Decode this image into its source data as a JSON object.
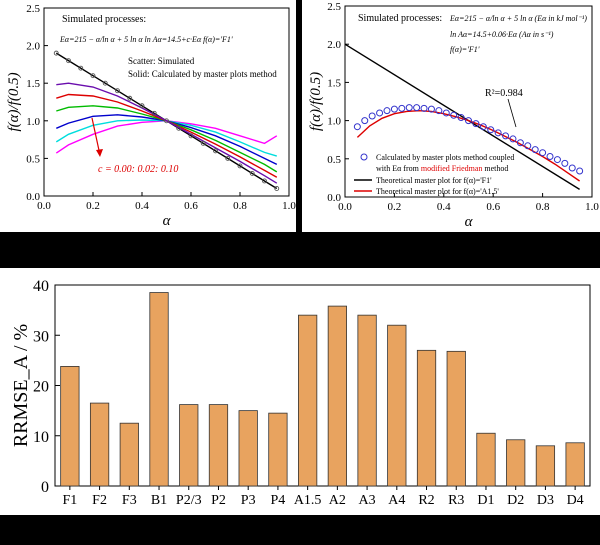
{
  "chart_data": [
    {
      "type": "line",
      "panel": "a",
      "xlabel": "α",
      "ylabel": "f(α)/f(0.5)",
      "xlim": [
        0.0,
        1.0
      ],
      "ylim": [
        0.0,
        2.5
      ],
      "xticks": [
        "0.0",
        "0.2",
        "0.4",
        "0.6",
        "0.8",
        "1.0"
      ],
      "yticks": [
        "0.0",
        "0.5",
        "1.0",
        "1.5",
        "2.0",
        "2.5"
      ],
      "annotations": {
        "title": "Simulated processes:",
        "eq1": "Eα=215 − α/ln α + 5 ln α   ln Aα=14.5+c·Eα   f(α)='F1'",
        "scatter_note": "Scatter: Simulated",
        "solid_note": "Solid: Calculated by master plots method",
        "c_label": "c = 0.00: 0.02: 0.10"
      },
      "series": [
        {
          "color": "#000000",
          "x": [
            0.05,
            0.1,
            0.2,
            0.3,
            0.4,
            0.5,
            0.6,
            0.7,
            0.8,
            0.9,
            0.95
          ],
          "y": [
            1.9,
            1.8,
            1.6,
            1.4,
            1.2,
            1.0,
            0.8,
            0.6,
            0.4,
            0.2,
            0.1
          ]
        },
        {
          "color": "#ff00ff",
          "x": [
            0.05,
            0.1,
            0.2,
            0.3,
            0.4,
            0.5,
            0.6,
            0.7,
            0.8,
            0.9,
            0.95
          ],
          "y": [
            0.57,
            0.68,
            0.82,
            0.93,
            0.98,
            1.0,
            0.96,
            0.9,
            0.8,
            0.7,
            0.8
          ]
        },
        {
          "color": "#00dddd",
          "x": [
            0.05,
            0.1,
            0.2,
            0.3,
            0.4,
            0.5,
            0.6,
            0.7,
            0.8,
            0.9,
            0.95
          ],
          "y": [
            0.72,
            0.82,
            0.94,
            1.0,
            1.01,
            1.0,
            0.94,
            0.85,
            0.72,
            0.58,
            0.53
          ]
        },
        {
          "color": "#0000cc",
          "x": [
            0.05,
            0.1,
            0.2,
            0.3,
            0.4,
            0.5,
            0.6,
            0.7,
            0.8,
            0.9,
            0.95
          ],
          "y": [
            0.9,
            0.97,
            1.06,
            1.08,
            1.05,
            1.0,
            0.91,
            0.8,
            0.66,
            0.5,
            0.42
          ]
        },
        {
          "color": "#00bb00",
          "x": [
            0.05,
            0.1,
            0.2,
            0.3,
            0.4,
            0.5,
            0.6,
            0.7,
            0.8,
            0.9,
            0.95
          ],
          "y": [
            1.13,
            1.18,
            1.2,
            1.17,
            1.09,
            1.0,
            0.88,
            0.74,
            0.58,
            0.42,
            0.32
          ]
        },
        {
          "color": "#dd0000",
          "x": [
            0.05,
            0.1,
            0.2,
            0.3,
            0.4,
            0.5,
            0.6,
            0.7,
            0.8,
            0.9,
            0.95
          ],
          "y": [
            1.3,
            1.35,
            1.33,
            1.25,
            1.13,
            1.0,
            0.85,
            0.69,
            0.52,
            0.34,
            0.25
          ]
        },
        {
          "color": "#6a0dad",
          "x": [
            0.05,
            0.1,
            0.2,
            0.3,
            0.4,
            0.5,
            0.6,
            0.7,
            0.8,
            0.9,
            0.95
          ],
          "y": [
            1.48,
            1.5,
            1.45,
            1.33,
            1.17,
            1.0,
            0.82,
            0.64,
            0.46,
            0.27,
            0.17
          ]
        }
      ],
      "scatter_series": {
        "color": "#555555",
        "x": [
          0.05,
          0.1,
          0.15,
          0.2,
          0.25,
          0.3,
          0.35,
          0.4,
          0.45,
          0.5,
          0.55,
          0.6,
          0.65,
          0.7,
          0.75,
          0.8,
          0.85,
          0.9,
          0.95
        ],
        "y": [
          1.9,
          1.8,
          1.7,
          1.6,
          1.5,
          1.4,
          1.3,
          1.2,
          1.1,
          1.0,
          0.9,
          0.8,
          0.7,
          0.6,
          0.5,
          0.4,
          0.3,
          0.2,
          0.1
        ]
      }
    },
    {
      "type": "line",
      "panel": "b",
      "xlabel": "α",
      "ylabel": "f(α)/f(0.5)",
      "xlim": [
        0.0,
        1.0
      ],
      "ylim": [
        0.0,
        2.5
      ],
      "xticks": [
        "0.0",
        "0.2",
        "0.4",
        "0.6",
        "0.8",
        "1.0"
      ],
      "yticks": [
        "0.0",
        "0.5",
        "1.0",
        "1.5",
        "2.0",
        "2.5"
      ],
      "annotations": {
        "title": "Simulated processes:",
        "eq1": "Eα=215 − α/ln α + 5 ln α   (Eα in kJ mol⁻¹)",
        "eq2": "ln Aα=14.5+0.06·Eα   (Aα in s⁻¹)",
        "eq3": "f(α)='F1'",
        "r2": "R²=0.984"
      },
      "legend": {
        "scatter": "Calculated by master plots method coupled",
        "scatter_line2_prefix": "with Eα from ",
        "scatter_line2_highlight": "modified Friedman",
        "scatter_line2_suffix": " method",
        "black": "Theoretical master plot for f(α)='F1'",
        "red": "Theoretical master plot for f(α)='A1.5'"
      },
      "series": [
        {
          "name": "Theoretical master plot for f(α)='F1'",
          "color": "#000000",
          "x": [
            0.0,
            0.95
          ],
          "y": [
            2.0,
            0.1
          ]
        },
        {
          "name": "Theoretical master plot for f(α)='A1.5'",
          "color": "#dd0000",
          "x": [
            0.05,
            0.1,
            0.15,
            0.2,
            0.25,
            0.3,
            0.35,
            0.4,
            0.45,
            0.5,
            0.55,
            0.6,
            0.65,
            0.7,
            0.75,
            0.8,
            0.85,
            0.9,
            0.95
          ],
          "y": [
            0.78,
            0.93,
            1.03,
            1.09,
            1.12,
            1.13,
            1.12,
            1.09,
            1.05,
            1.0,
            0.94,
            0.87,
            0.79,
            0.71,
            0.62,
            0.53,
            0.43,
            0.32,
            0.21
          ]
        }
      ],
      "scatter_series": {
        "name": "Calculated by master plots method",
        "color": "#3333cc",
        "x": [
          0.05,
          0.08,
          0.11,
          0.14,
          0.17,
          0.2,
          0.23,
          0.26,
          0.29,
          0.32,
          0.35,
          0.38,
          0.41,
          0.44,
          0.47,
          0.5,
          0.53,
          0.56,
          0.59,
          0.62,
          0.65,
          0.68,
          0.71,
          0.74,
          0.77,
          0.8,
          0.83,
          0.86,
          0.89,
          0.92,
          0.95
        ],
        "y": [
          0.92,
          1.0,
          1.06,
          1.1,
          1.13,
          1.15,
          1.16,
          1.17,
          1.17,
          1.16,
          1.15,
          1.13,
          1.1,
          1.07,
          1.04,
          1.0,
          0.96,
          0.92,
          0.88,
          0.84,
          0.8,
          0.76,
          0.71,
          0.67,
          0.62,
          0.58,
          0.53,
          0.49,
          0.44,
          0.38,
          0.34
        ]
      }
    },
    {
      "type": "bar",
      "panel": "c",
      "ylabel": "RRMSE_A / %",
      "ylim": [
        0,
        40
      ],
      "yticks": [
        "0",
        "10",
        "20",
        "30",
        "40"
      ],
      "bar_color": "#e8a35f",
      "categories": [
        "F1",
        "F2",
        "F3",
        "B1",
        "P2/3",
        "P2",
        "P3",
        "P4",
        "A1.5",
        "A2",
        "A3",
        "A4",
        "R2",
        "R3",
        "D1",
        "D2",
        "D3",
        "D4"
      ],
      "values": [
        23.8,
        16.5,
        12.5,
        38.5,
        16.2,
        16.2,
        15.0,
        14.5,
        34.0,
        35.8,
        34.0,
        32.0,
        27.0,
        26.8,
        10.5,
        9.2,
        8.0,
        8.6
      ]
    }
  ]
}
